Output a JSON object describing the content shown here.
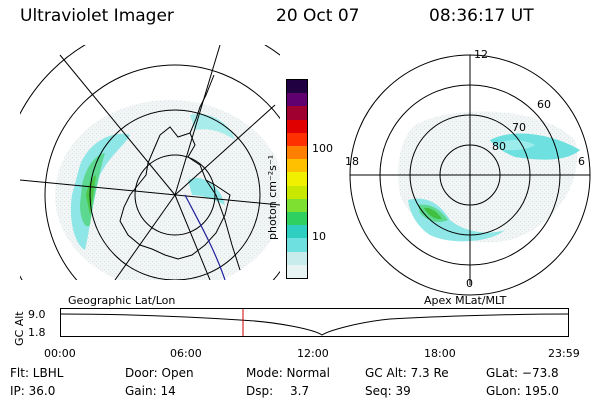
{
  "header": {
    "title": "Ultraviolet Imager",
    "date": "20 Oct 07",
    "time": "08:36:17 UT"
  },
  "colorbar": {
    "unit_label": "photon cm⁻²s⁻¹",
    "ticks": [
      {
        "label": "100",
        "value": 100
      },
      {
        "label": "10",
        "value": 10
      }
    ],
    "colors": [
      "#e8f4f4",
      "#c8ecec",
      "#6fe0e0",
      "#2ecfc0",
      "#30d060",
      "#7ee030",
      "#c8e800",
      "#f0f000",
      "#ffc000",
      "#ff8000",
      "#ff3000",
      "#e00000",
      "#a00030",
      "#600070",
      "#200040"
    ]
  },
  "geo_panel": {
    "label": "Geographic Lat/Lon"
  },
  "apex_panel": {
    "label": "Apex MLat/MLT",
    "mlt_labels": {
      "top": "12",
      "right": "6",
      "bottom": "0",
      "left": "18"
    },
    "lat_labels": [
      "60",
      "70",
      "80"
    ]
  },
  "altitude_plot": {
    "ylabel": "GC Alt",
    "yticks": [
      "9.0",
      "1.8"
    ],
    "xticks": [
      "00:00",
      "06:00",
      "12:00",
      "18:00",
      "23:59"
    ],
    "marker_time": "08:36",
    "marker_color": "#cc0000"
  },
  "info": {
    "flt": "Flt: LBHL",
    "ip": "IP: 36.0",
    "door": "Door: Open",
    "gain": "Gain: 14",
    "mode": "Mode: Normal",
    "dsp_label": "Dsp:",
    "dsp_value": "3.7",
    "gcalt": "GC Alt: 7.3 Re",
    "seq": "Seq: 39",
    "glat": "GLat: −73.8",
    "glon": "GLon: 195.0"
  }
}
